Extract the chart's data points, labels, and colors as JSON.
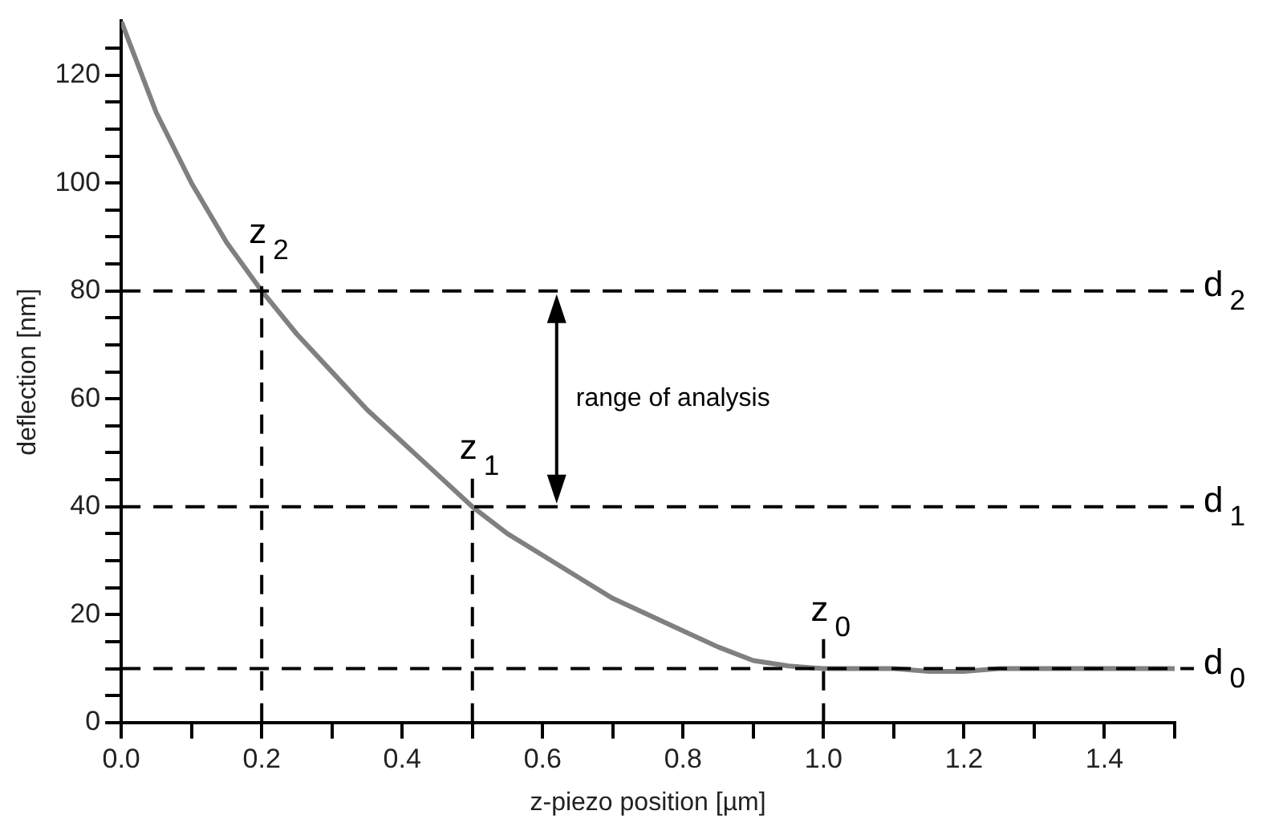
{
  "chart_data": {
    "type": "line",
    "xlabel": "z-piezo position [µm]",
    "ylabel": "deflection [nm]",
    "x": [
      0,
      0.05,
      0.1,
      0.15,
      0.2,
      0.25,
      0.3,
      0.35,
      0.4,
      0.45,
      0.5,
      0.55,
      0.6,
      0.65,
      0.7,
      0.75,
      0.8,
      0.85,
      0.9,
      0.95,
      1.0,
      1.05,
      1.1,
      1.15,
      1.2,
      1.25,
      1.3,
      1.35,
      1.4,
      1.45,
      1.5
    ],
    "series": [
      {
        "color": "#808080",
        "values": [
          130,
          113,
          100,
          89,
          80,
          72,
          65,
          58,
          52,
          46,
          40,
          35,
          31,
          27,
          23,
          20,
          17,
          14,
          11.5,
          10.5,
          10,
          10,
          10,
          9.5,
          9.5,
          10,
          10,
          10,
          10,
          10,
          10
        ]
      }
    ],
    "xlim": [
      0,
      1.5
    ],
    "ylim": [
      0,
      130
    ],
    "xticks": [
      {
        "value": 0,
        "label": "0.0"
      },
      {
        "value": 0.1,
        "label": null
      },
      {
        "value": 0.2,
        "label": "0.2"
      },
      {
        "value": 0.3,
        "label": null
      },
      {
        "value": 0.4,
        "label": "0.4"
      },
      {
        "value": 0.5,
        "label": null
      },
      {
        "value": 0.6,
        "label": "0.6"
      },
      {
        "value": 0.7,
        "label": null
      },
      {
        "value": 0.8,
        "label": "0.8"
      },
      {
        "value": 0.9,
        "label": null
      },
      {
        "value": 1,
        "label": "1.0"
      },
      {
        "value": 1.1,
        "label": null
      },
      {
        "value": 1.2,
        "label": "1.2"
      },
      {
        "value": 1.3,
        "label": null
      },
      {
        "value": 1.4,
        "label": "1.4"
      },
      {
        "value": 1.5,
        "label": null
      }
    ],
    "yticks": [
      0,
      {
        "value": 5,
        "label": null
      },
      {
        "value": 10,
        "label": null
      },
      {
        "value": 15,
        "label": null
      },
      20,
      {
        "value": 25,
        "label": null
      },
      {
        "value": 30,
        "label": null
      },
      {
        "value": 35,
        "label": null
      },
      40,
      {
        "value": 45,
        "label": null
      },
      {
        "value": 50,
        "label": null
      },
      {
        "value": 55,
        "label": null
      },
      60,
      {
        "value": 65,
        "label": null
      },
      {
        "value": 70,
        "label": null
      },
      {
        "value": 75,
        "label": null
      },
      80,
      {
        "value": 85,
        "label": null
      },
      {
        "value": 90,
        "label": null
      },
      {
        "value": 95,
        "label": null
      },
      100,
      {
        "value": 105,
        "label": null
      },
      {
        "value": 110,
        "label": null
      },
      {
        "value": 115,
        "label": null
      },
      120,
      {
        "value": 125,
        "label": null
      }
    ],
    "ref_lines": [
      {
        "axis": "y",
        "value": 80,
        "label": "d$_{2}$",
        "color": "#000000",
        "line_style": "dashed"
      },
      {
        "axis": "y",
        "value": 40,
        "label": "d$_{1}$",
        "color": "#000000",
        "line_style": "dashed"
      },
      {
        "axis": "y",
        "value": 10,
        "label": "d$_{0}$",
        "color": "#000000",
        "line_style": "dashed"
      },
      {
        "axis": "x",
        "value": 0.2,
        "label": "z$_{2}$",
        "color": "#000000",
        "line_style": "dashed"
      },
      {
        "axis": "x",
        "value": 0.5,
        "label": "z$_{1}$",
        "color": "#000000",
        "line_style": "dashed"
      },
      {
        "axis": "x",
        "value": 1.0,
        "label": "z$_{0}$",
        "color": "#000000",
        "line_style": "dashed"
      }
    ],
    "annotations": [
      "range of analysis"
    ],
    "grid": false,
    "legend": false,
    "marker": "none",
    "line_style": "solid"
  }
}
